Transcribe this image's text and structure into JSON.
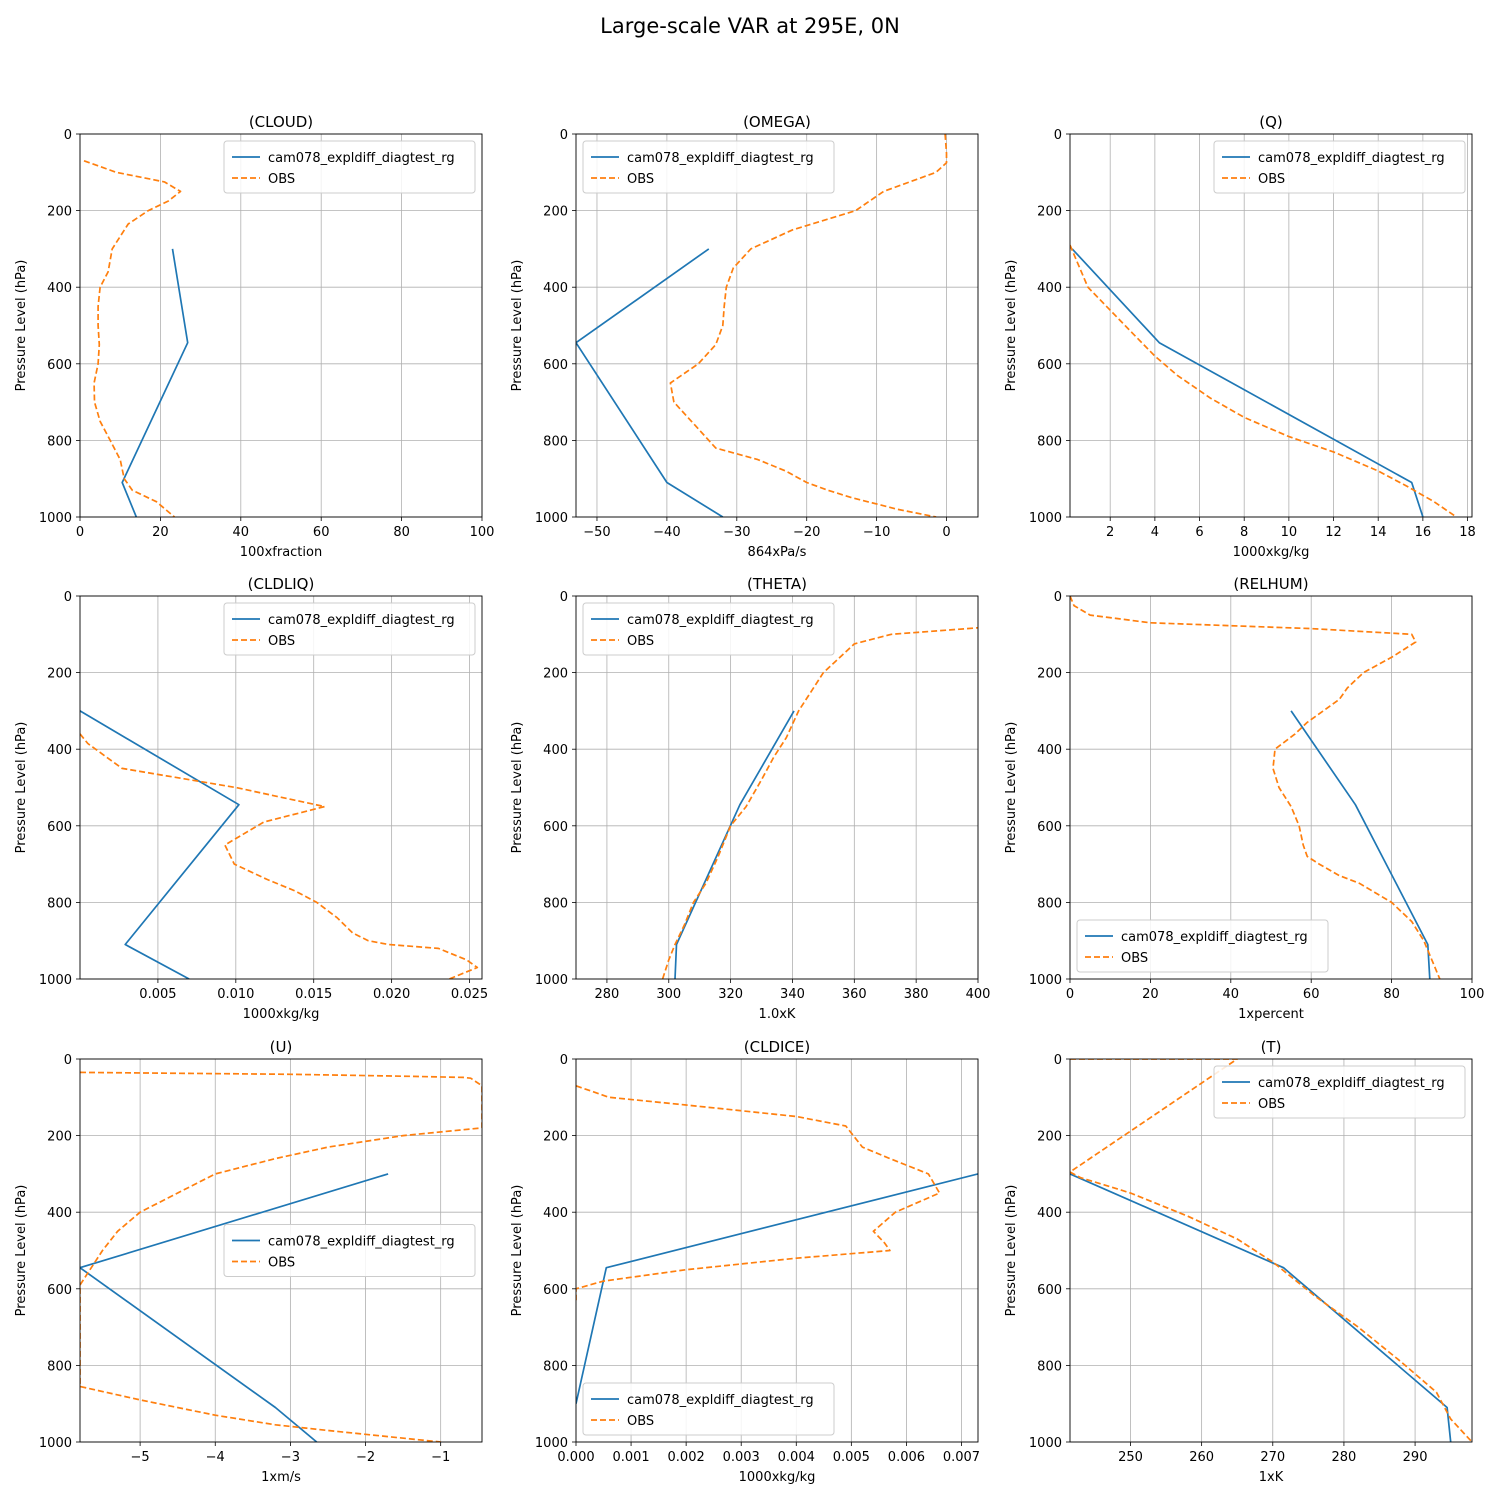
{
  "figure_title": "Large-scale VAR at 295E, 0N",
  "colors": {
    "model": "#1f77b4",
    "obs": "#ff7f0e",
    "grid": "#b0b0b0"
  },
  "chart_data": [
    {
      "type": "line",
      "title": "(CLOUD)",
      "xlabel": "100xfraction",
      "ylabel": "Pressure Level (hPa)",
      "xlim": [
        0,
        100
      ],
      "ylim": [
        1000,
        0
      ],
      "xticks": [
        0,
        20,
        40,
        60,
        80,
        100
      ],
      "yticks": [
        0,
        200,
        400,
        600,
        800,
        1000
      ],
      "grid": true,
      "legend": "upper right",
      "series": [
        {
          "name": "cam078_expldiff_diagtest_rg",
          "style": "solid",
          "x": [
            23,
            26.8,
            10.5,
            14
          ],
          "y": [
            300,
            545,
            910,
            1000
          ]
        },
        {
          "name": "OBS",
          "style": "dashed",
          "x": [
            1,
            9,
            21,
            25,
            22,
            17,
            12,
            8,
            7,
            5,
            4.5,
            4.5,
            4.8,
            4.5,
            3.5,
            3.6,
            5,
            7.5,
            10,
            11,
            13,
            19,
            23.5
          ],
          "y": [
            70,
            100,
            125,
            150,
            175,
            200,
            235,
            300,
            360,
            400,
            450,
            500,
            550,
            600,
            650,
            700,
            750,
            800,
            850,
            900,
            930,
            960,
            1000
          ]
        }
      ]
    },
    {
      "type": "line",
      "title": "(OMEGA)",
      "xlabel": "864xPa/s",
      "ylabel": "Pressure Level (hPa)",
      "xlim": [
        -53,
        4.5
      ],
      "ylim": [
        1000,
        0
      ],
      "xticks": [
        -50,
        -40,
        -30,
        -20,
        -10,
        0
      ],
      "yticks": [
        0,
        200,
        400,
        600,
        800,
        1000
      ],
      "grid": true,
      "legend": "upper left",
      "series": [
        {
          "name": "cam078_expldiff_diagtest_rg",
          "style": "solid",
          "x": [
            -34,
            -53,
            -40,
            -32
          ],
          "y": [
            300,
            545,
            910,
            1000
          ]
        },
        {
          "name": "OBS",
          "style": "dashed",
          "x": [
            -0.2,
            0,
            0,
            -1.5,
            -9,
            -13,
            -22,
            -28,
            -30.5,
            -31.5,
            -31.8,
            -32,
            -33,
            -35.5,
            -39.5,
            -39,
            -36,
            -33,
            -27,
            -23,
            -20,
            -17,
            -13.5,
            -7,
            -1.5
          ],
          "y": [
            0,
            50,
            75,
            100,
            150,
            200,
            250,
            300,
            350,
            400,
            450,
            500,
            550,
            600,
            650,
            700,
            760,
            820,
            850,
            880,
            910,
            930,
            950,
            980,
            1000
          ]
        }
      ]
    },
    {
      "type": "line",
      "title": "(Q)",
      "xlabel": "1000xkg/kg",
      "ylabel": "",
      "xlim": [
        0.2,
        18.2
      ],
      "ylim": [
        1000,
        0
      ],
      "xticks": [
        2,
        4,
        6,
        8,
        10,
        12,
        14,
        16,
        18
      ],
      "yticks": [
        0,
        200,
        400,
        600,
        800,
        1000
      ],
      "grid": true,
      "legend": "upper right",
      "series": [
        {
          "name": "cam078_expldiff_diagtest_rg",
          "style": "solid",
          "x": [
            0.3,
            4.2,
            15.5,
            16
          ],
          "y": [
            300,
            545,
            910,
            1000
          ]
        },
        {
          "name": "OBS",
          "style": "dashed",
          "x": [
            0.2,
            1,
            2,
            3,
            4,
            5,
            6.5,
            8,
            10,
            12,
            14,
            15.3,
            16.5,
            17.5
          ],
          "y": [
            290,
            400,
            460,
            520,
            580,
            630,
            690,
            740,
            790,
            830,
            880,
            920,
            960,
            1000
          ]
        }
      ]
    },
    {
      "type": "line",
      "title": "(CLDLIQ)",
      "xlabel": "1000xkg/kg",
      "ylabel": "Pressure Level (hPa)",
      "xlim": [
        0,
        0.0258
      ],
      "ylim": [
        1000,
        0
      ],
      "xticks": [
        0.005,
        0.01,
        0.015,
        0.02,
        0.025
      ],
      "xticklabels": [
        "0.005",
        "0.010",
        "0.015",
        "0.020",
        "0.025"
      ],
      "yticks": [
        0,
        200,
        400,
        600,
        800,
        1000
      ],
      "grid": true,
      "legend": "upper right",
      "series": [
        {
          "name": "cam078_expldiff_diagtest_rg",
          "style": "solid",
          "x": [
            0,
            0.0102,
            0.0029,
            0.007
          ],
          "y": [
            300,
            545,
            910,
            1000
          ]
        },
        {
          "name": "OBS",
          "style": "dashed",
          "x": [
            0,
            0.0005,
            0.001,
            0.0027,
            0.01,
            0.0157,
            0.0118,
            0.0093,
            0.0099,
            0.012,
            0.0138,
            0.0152,
            0.0165,
            0.0175,
            0.0185,
            0.0198,
            0.023,
            0.0248,
            0.0255,
            0.0237
          ],
          "y": [
            360,
            385,
            400,
            450,
            500,
            550,
            590,
            650,
            700,
            740,
            770,
            800,
            840,
            880,
            900,
            910,
            920,
            950,
            970,
            1000
          ]
        }
      ]
    },
    {
      "type": "line",
      "title": "(THETA)",
      "xlabel": "1.0xK",
      "ylabel": "Pressure Level (hPa)",
      "xlim": [
        270,
        400
      ],
      "ylim": [
        1000,
        0
      ],
      "xticks": [
        280,
        300,
        320,
        340,
        360,
        380,
        400
      ],
      "yticks": [
        0,
        200,
        400,
        600,
        800,
        1000
      ],
      "grid": true,
      "legend": "upper left",
      "series": [
        {
          "name": "cam078_expldiff_diagtest_rg",
          "style": "solid",
          "x": [
            340.5,
            323,
            302.5,
            302
          ],
          "y": [
            300,
            545,
            910,
            1000
          ]
        },
        {
          "name": "OBS",
          "style": "dashed",
          "x": [
            298,
            300,
            302,
            305,
            308,
            312,
            316,
            320,
            325,
            330,
            334,
            338,
            342,
            346,
            350,
            354,
            360,
            372,
            400
          ],
          "y": [
            1000,
            950,
            910,
            860,
            800,
            750,
            680,
            600,
            550,
            480,
            420,
            370,
            300,
            250,
            200,
            170,
            125,
            100,
            83
          ]
        }
      ]
    },
    {
      "type": "line",
      "title": "(RELHUM)",
      "xlabel": "1xpercent",
      "ylabel": "",
      "xlim": [
        0,
        100
      ],
      "ylim": [
        1000,
        0
      ],
      "xticks": [
        0,
        20,
        40,
        60,
        80,
        100
      ],
      "yticks": [
        0,
        200,
        400,
        600,
        800,
        1000
      ],
      "grid": true,
      "legend": "lower left",
      "series": [
        {
          "name": "cam078_expldiff_diagtest_rg",
          "style": "solid",
          "x": [
            55,
            71,
            89,
            89.5
          ],
          "y": [
            300,
            545,
            910,
            1000
          ]
        },
        {
          "name": "OBS",
          "style": "dashed",
          "x": [
            0,
            1,
            5,
            20,
            60,
            85,
            86,
            80,
            73,
            69,
            67,
            63,
            59,
            56,
            51,
            50.5,
            52,
            55,
            57,
            58,
            59,
            62,
            67,
            72,
            80,
            85,
            88,
            90,
            92
          ],
          "y": [
            0,
            25,
            50,
            70,
            85,
            100,
            120,
            160,
            200,
            240,
            270,
            300,
            330,
            360,
            400,
            450,
            500,
            550,
            600,
            650,
            680,
            700,
            730,
            750,
            800,
            850,
            900,
            950,
            1000
          ]
        }
      ]
    },
    {
      "type": "line",
      "title": "(U)",
      "xlabel": "1xm/s",
      "ylabel": "Pressure Level (hPa)",
      "xlim": [
        -5.8,
        -0.45
      ],
      "ylim": [
        1000,
        0
      ],
      "xticks": [
        -5,
        -4,
        -3,
        -2,
        -1
      ],
      "xticklabels": [
        "−5",
        "−4",
        "−3",
        "−2",
        "−1"
      ],
      "yticks": [
        0,
        200,
        400,
        600,
        800,
        1000
      ],
      "grid": true,
      "legend": "center right",
      "series": [
        {
          "name": "cam078_expldiff_diagtest_rg",
          "style": "solid",
          "x": [
            -1.7,
            -5.8,
            -3.2,
            -2.65
          ],
          "y": [
            300,
            545,
            910,
            1000
          ]
        },
        {
          "name": "OBS",
          "style": "dashed",
          "x": [
            -5.8,
            -3,
            -1.5,
            -0.7,
            -0.6,
            -0.45,
            -0.45,
            -1.5,
            -2.5,
            -3.2,
            -4,
            -4.5,
            -5,
            -5.3,
            -5.5,
            -5.8,
            -5.8,
            -5.0,
            -4.0,
            -3.2,
            -2.5,
            -1.0
          ],
          "y": [
            35,
            40,
            45,
            48,
            50,
            70,
            180,
            200,
            230,
            260,
            300,
            350,
            400,
            450,
            500,
            590,
            855,
            890,
            930,
            955,
            970,
            1000
          ]
        }
      ]
    },
    {
      "type": "line",
      "title": "(CLDICE)",
      "xlabel": "1000xkg/kg",
      "ylabel": "Pressure Level (hPa)",
      "xlim": [
        0,
        0.0073
      ],
      "ylim": [
        1000,
        0
      ],
      "xticks": [
        0,
        0.001,
        0.002,
        0.003,
        0.004,
        0.005,
        0.006,
        0.007
      ],
      "xticklabels": [
        "0.000",
        "0.001",
        "0.002",
        "0.003",
        "0.004",
        "0.005",
        "0.006",
        "0.007"
      ],
      "yticks": [
        0,
        200,
        400,
        600,
        800,
        1000
      ],
      "grid": true,
      "legend": "lower left",
      "series": [
        {
          "name": "cam078_expldiff_diagtest_rg",
          "style": "solid",
          "x": [
            0.0073,
            0.00055,
            0.0
          ],
          "y": [
            300,
            545,
            900
          ]
        },
        {
          "name": "OBS",
          "style": "dashed",
          "x": [
            0,
            0.0006,
            0.002,
            0.004,
            0.0049,
            0.0052,
            0.0057,
            0.0064,
            0.0066,
            0.0058,
            0.0054,
            0.0056,
            0.0057,
            0.004,
            0.002,
            0.0005,
            0,
            0
          ],
          "y": [
            70,
            100,
            120,
            150,
            175,
            230,
            260,
            300,
            350,
            400,
            450,
            480,
            500,
            520,
            550,
            580,
            600,
            630
          ]
        }
      ]
    },
    {
      "type": "line",
      "title": "(T)",
      "xlabel": "1xK",
      "ylabel": "Pressure Level (hPa)",
      "xlim": [
        241.5,
        298
      ],
      "ylim": [
        1000,
        0
      ],
      "xticks": [
        250,
        260,
        270,
        280,
        290
      ],
      "yticks": [
        0,
        200,
        400,
        600,
        800,
        1000
      ],
      "grid": true,
      "legend": "upper right",
      "series": [
        {
          "name": "cam078_expldiff_diagtest_rg",
          "style": "solid",
          "x": [
            241.5,
            271.5,
            294.5,
            295
          ],
          "y": [
            300,
            545,
            910,
            1000
          ]
        },
        {
          "name": "OBS",
          "style": "dashed",
          "x": [
            241.5,
            265,
            241.5,
            243,
            250,
            258,
            265,
            270,
            276,
            282,
            288,
            293,
            295,
            298
          ],
          "y": [
            0,
            0,
            295,
            310,
            350,
            410,
            470,
            530,
            620,
            700,
            790,
            870,
            940,
            1000
          ]
        }
      ]
    }
  ]
}
